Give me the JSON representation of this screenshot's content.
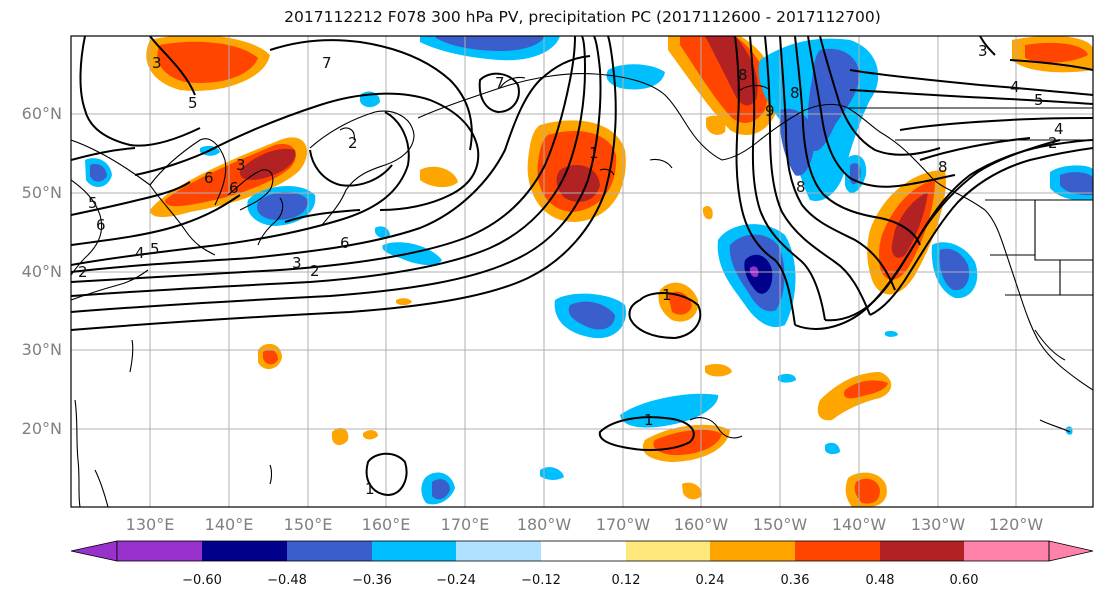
{
  "title": "2017112212 F078 300 hPa PV, precipitation PC (2017112600 - 2017112700)",
  "lat_labels": [
    "60°N",
    "50°N",
    "40°N",
    "30°N",
    "20°N"
  ],
  "lon_labels": [
    "130°E",
    "140°E",
    "150°E",
    "160°E",
    "170°E",
    "180°W",
    "170°W",
    "160°W",
    "150°W",
    "140°W",
    "130°W",
    "120°W"
  ],
  "colorbar": {
    "ticks": [
      "−0.60",
      "−0.48",
      "−0.36",
      "−0.24",
      "−0.12",
      "0.12",
      "0.24",
      "0.36",
      "0.48",
      "0.60"
    ],
    "colors": [
      "#9932cc",
      "#00008b",
      "#3a5fcd",
      "#00bfff",
      "#b0e2ff",
      "#ffffff",
      "#ffe87c",
      "#ffa500",
      "#ff4500",
      "#b22222",
      "#ff82ab"
    ]
  },
  "contour_labels": [
    "7",
    "5",
    "3",
    "6",
    "6",
    "5",
    "6",
    "2",
    "3",
    "4",
    "5",
    "2",
    "6",
    "3",
    "2",
    "7",
    "1",
    "8",
    "8",
    "9",
    "8",
    "3",
    "4",
    "5",
    "4",
    "2",
    "8",
    "1",
    "1",
    "1"
  ]
}
